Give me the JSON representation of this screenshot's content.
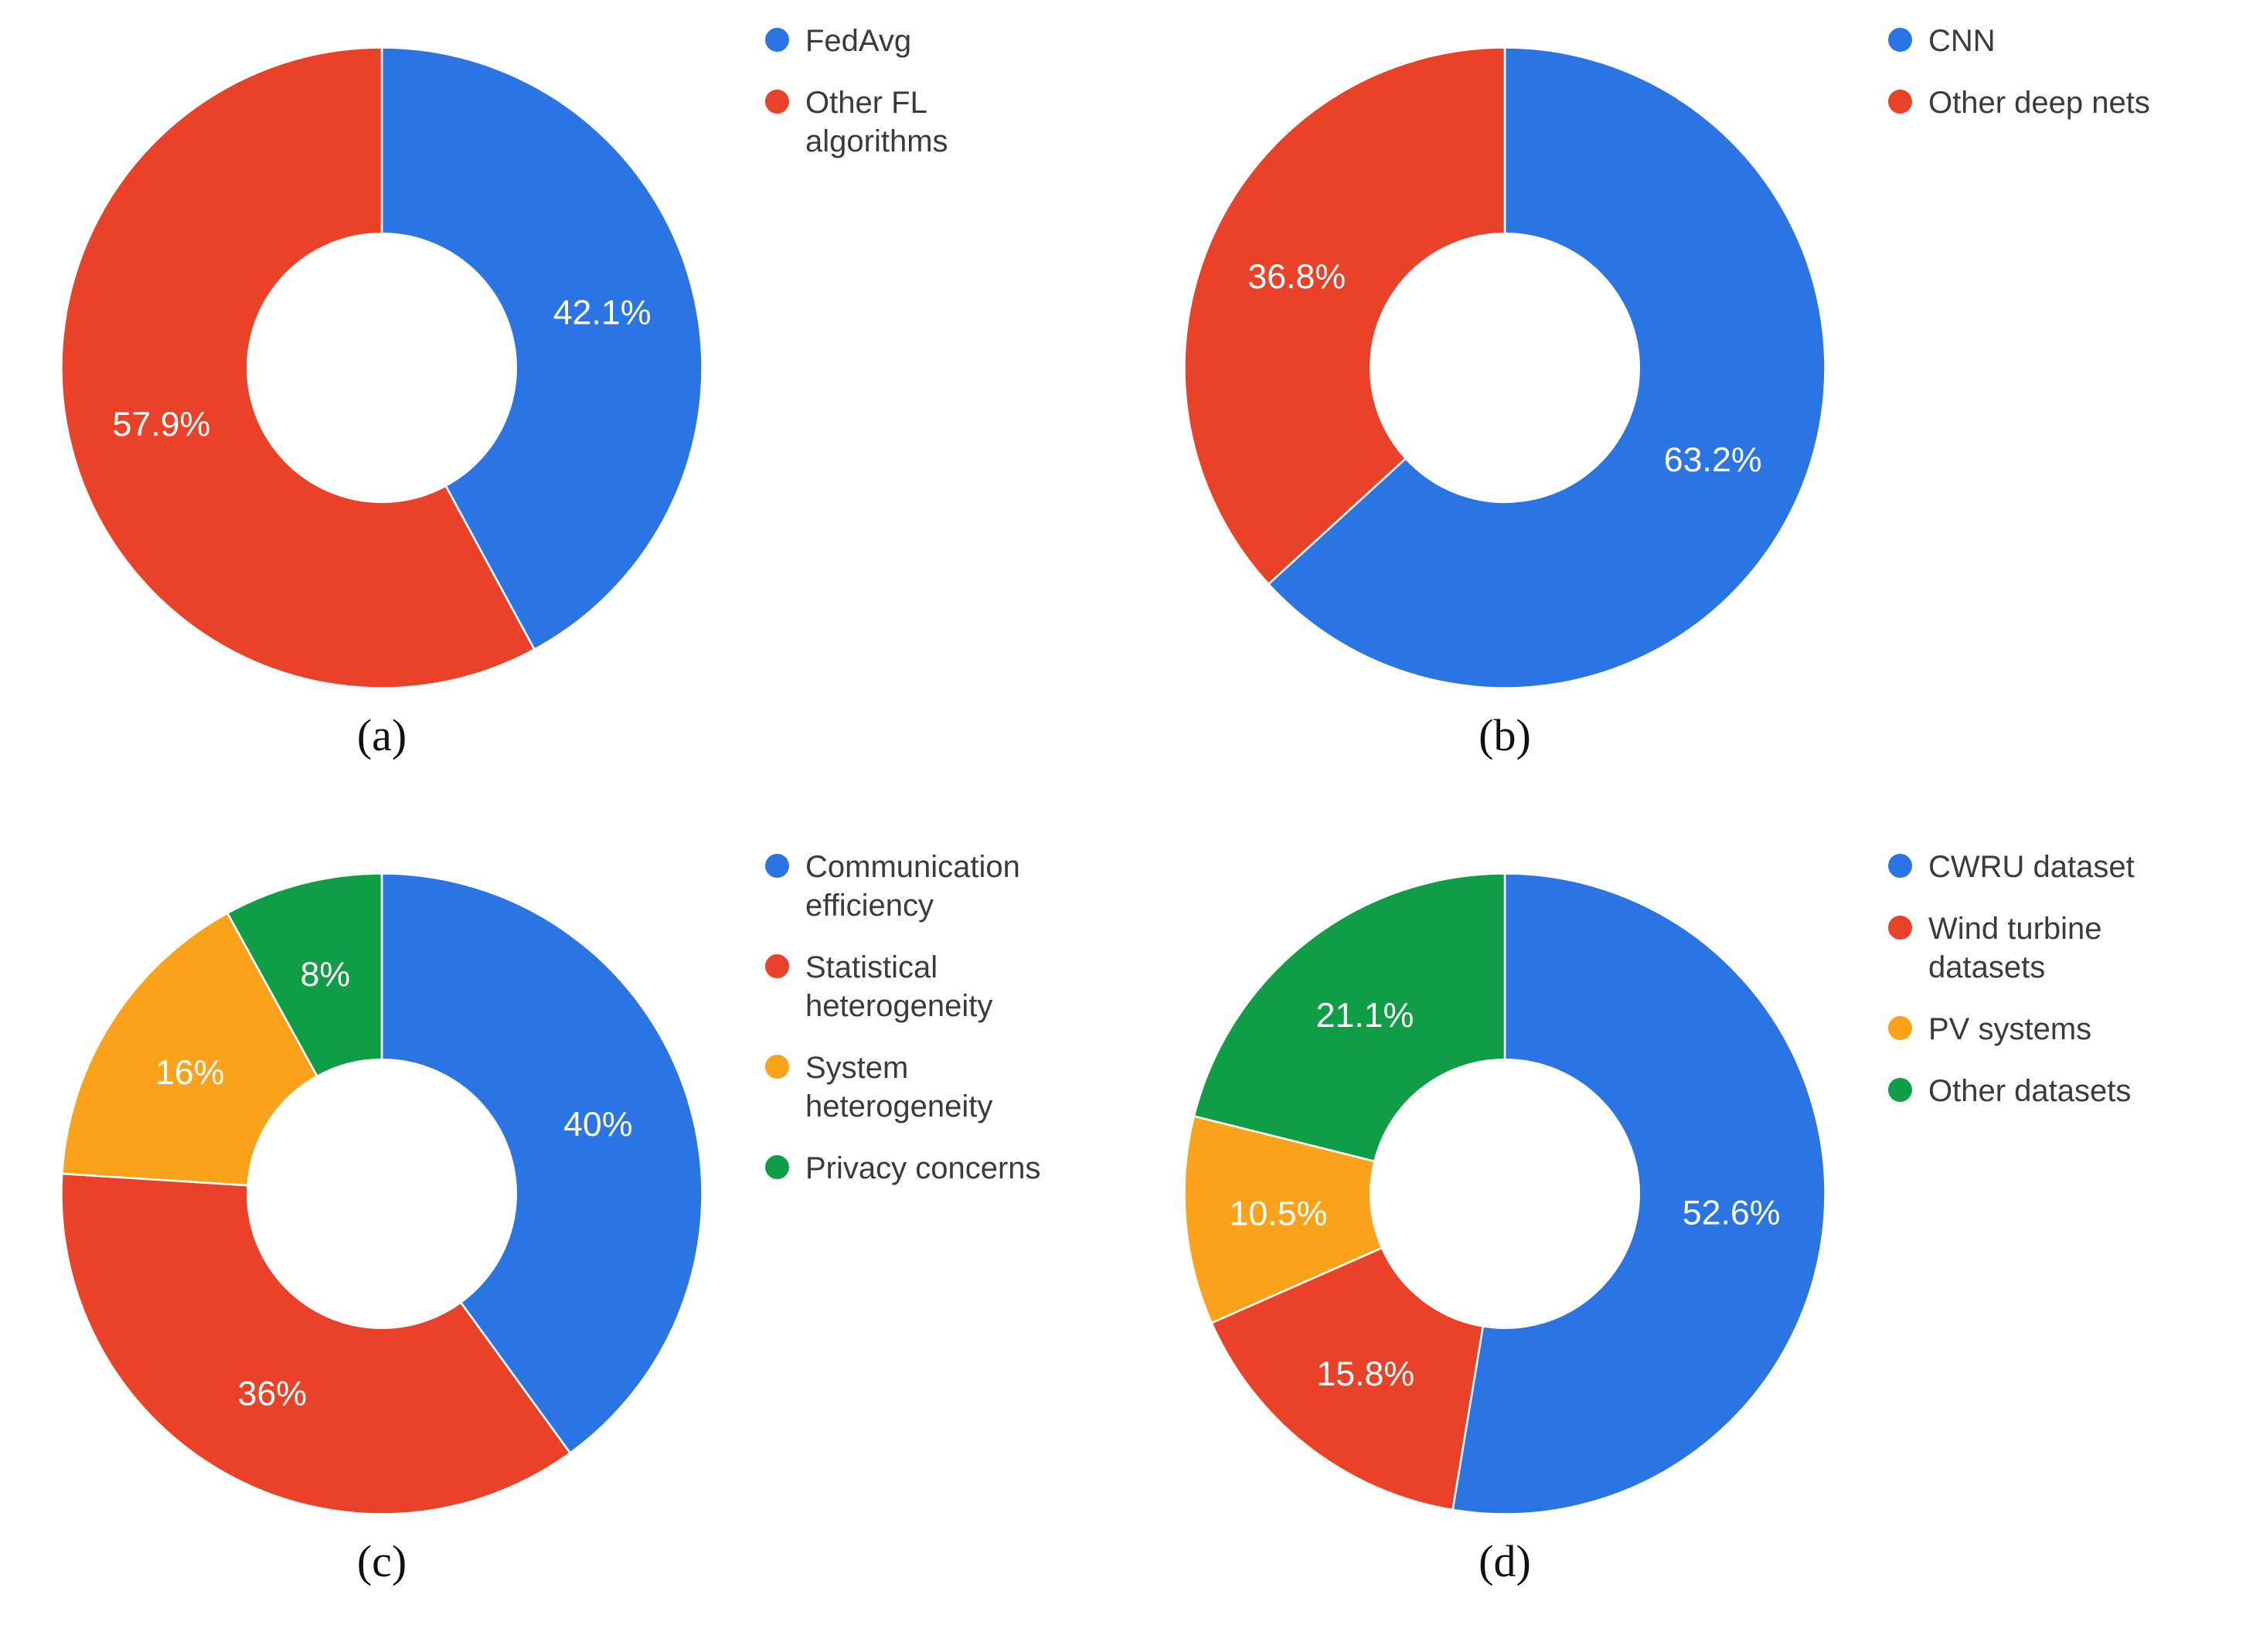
{
  "figure": {
    "background": "#ffffff",
    "value_label_color": "#ffffff",
    "legend_text_color": "#3b3b3b",
    "caption_color": "#111111",
    "slice_border_color": "#ffffff"
  },
  "chart_data": [
    {
      "id": "a",
      "type": "pie",
      "donut": true,
      "caption": "(a)",
      "start_angle_deg": 0,
      "direction": "clockwise",
      "legend_position": "right",
      "labels": [
        "FedAvg",
        "Other FL algorithms"
      ],
      "legend_labels": [
        "FedAvg",
        "Other FL\nalgorithms"
      ],
      "values": [
        42.1,
        57.9
      ],
      "value_labels": [
        "42.1%",
        "57.9%"
      ],
      "colors": [
        "#2b74e4",
        "#ea4228"
      ]
    },
    {
      "id": "b",
      "type": "pie",
      "donut": true,
      "caption": "(b)",
      "start_angle_deg": 0,
      "direction": "clockwise",
      "legend_position": "right",
      "labels": [
        "CNN",
        "Other deep nets"
      ],
      "legend_labels": [
        "CNN",
        "Other deep nets"
      ],
      "values": [
        63.2,
        36.8
      ],
      "value_labels": [
        "63.2%",
        "36.8%"
      ],
      "colors": [
        "#2b74e4",
        "#ea4228"
      ]
    },
    {
      "id": "c",
      "type": "pie",
      "donut": true,
      "caption": "(c)",
      "start_angle_deg": 0,
      "direction": "clockwise",
      "legend_position": "right",
      "labels": [
        "Communication efficiency",
        "Statistical heterogeneity",
        "System heterogeneity",
        "Privacy concerns"
      ],
      "legend_labels": [
        "Communication\nefficiency",
        "Statistical\nheterogeneity",
        "System\nheterogeneity",
        "Privacy concerns"
      ],
      "values": [
        40,
        36,
        16,
        8
      ],
      "value_labels": [
        "40%",
        "36%",
        "16%",
        "8%"
      ],
      "colors": [
        "#2b74e4",
        "#ea4228",
        "#fba21b",
        "#0f9d45"
      ]
    },
    {
      "id": "d",
      "type": "pie",
      "donut": true,
      "caption": "(d)",
      "start_angle_deg": 0,
      "direction": "clockwise",
      "legend_position": "right",
      "labels": [
        "CWRU dataset",
        "Wind turbine datasets",
        "PV systems",
        "Other datasets"
      ],
      "legend_labels": [
        "CWRU dataset",
        "Wind turbine\ndatasets",
        "PV systems",
        "Other datasets"
      ],
      "values": [
        52.6,
        15.8,
        10.5,
        21.1
      ],
      "value_labels": [
        "52.6%",
        "15.8%",
        "10.5%",
        "21.1%"
      ],
      "colors": [
        "#2b74e4",
        "#ea4228",
        "#fba21b",
        "#0f9d45"
      ]
    }
  ]
}
